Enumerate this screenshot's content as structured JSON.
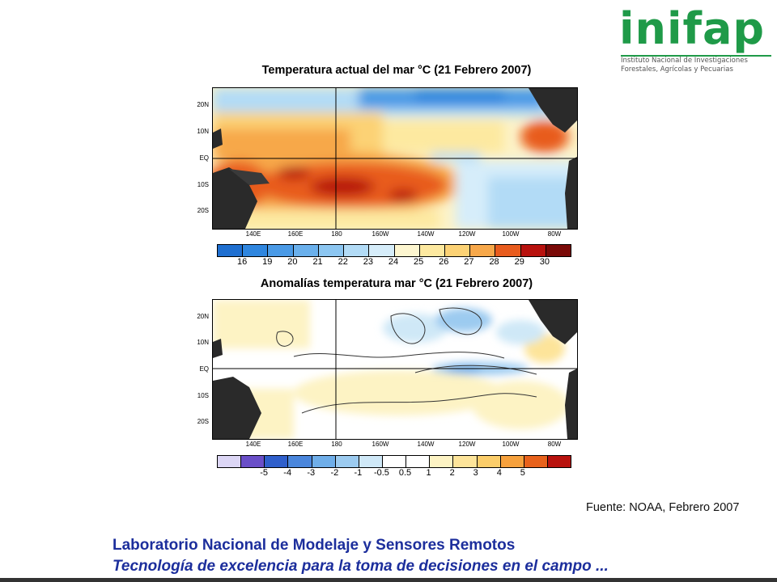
{
  "logo": {
    "word": "inifap",
    "subtitle_line1": "Instituto Nacional de Investigaciones",
    "subtitle_line2": "Forestales, Agrícolas y Pecuarias"
  },
  "map_top": {
    "title": "Temperatura actual del mar °C (21 Febrero 2007)",
    "lat_labels": [
      "20N",
      "10N",
      "EQ",
      "10S",
      "20S"
    ],
    "lon_labels": [
      "140E",
      "160E",
      "180",
      "160W",
      "140W",
      "120W",
      "100W",
      "80W"
    ],
    "colorbar": {
      "colors": [
        "#1f6fd0",
        "#2f86df",
        "#4a9ae6",
        "#6ab0ec",
        "#8cc6f1",
        "#b2dbf6",
        "#d6edfa",
        "#fdf6d0",
        "#fde9a0",
        "#fcd275",
        "#f7a84a",
        "#e85c1e",
        "#b8120e",
        "#7a0a08"
      ],
      "ticks": [
        "16",
        "19",
        "20",
        "21",
        "22",
        "23",
        "24",
        "25",
        "26",
        "27",
        "28",
        "29",
        "30"
      ]
    }
  },
  "map_bottom": {
    "title": "Anomalías temperatura mar °C (21 Febrero 2007)",
    "lat_labels": [
      "20N",
      "10N",
      "EQ",
      "10S",
      "20S"
    ],
    "lon_labels": [
      "140E",
      "160E",
      "180",
      "160W",
      "140W",
      "120W",
      "100W",
      "80W"
    ],
    "colorbar": {
      "colors": [
        "#dcd6f5",
        "#6a4fc8",
        "#2f5fcb",
        "#4a86dc",
        "#6faee9",
        "#9ccbf0",
        "#cfe8f7",
        "#ffffff",
        "#ffffff",
        "#fdf3c4",
        "#fde49a",
        "#fbcd6a",
        "#f6a13d",
        "#e8621c",
        "#b8120e"
      ],
      "ticks": [
        "-5",
        "-4",
        "-3",
        "-2",
        "-1",
        "-0.5",
        "0.5",
        "1",
        "2",
        "3",
        "4",
        "5"
      ]
    }
  },
  "source": "Fuente: NOAA, Febrero 2007",
  "footer": {
    "line1": "Laboratorio Nacional de Modelaje y Sensores Remotos",
    "line2": "Tecnología de excelencia para la toma de decisiones en el campo ..."
  }
}
